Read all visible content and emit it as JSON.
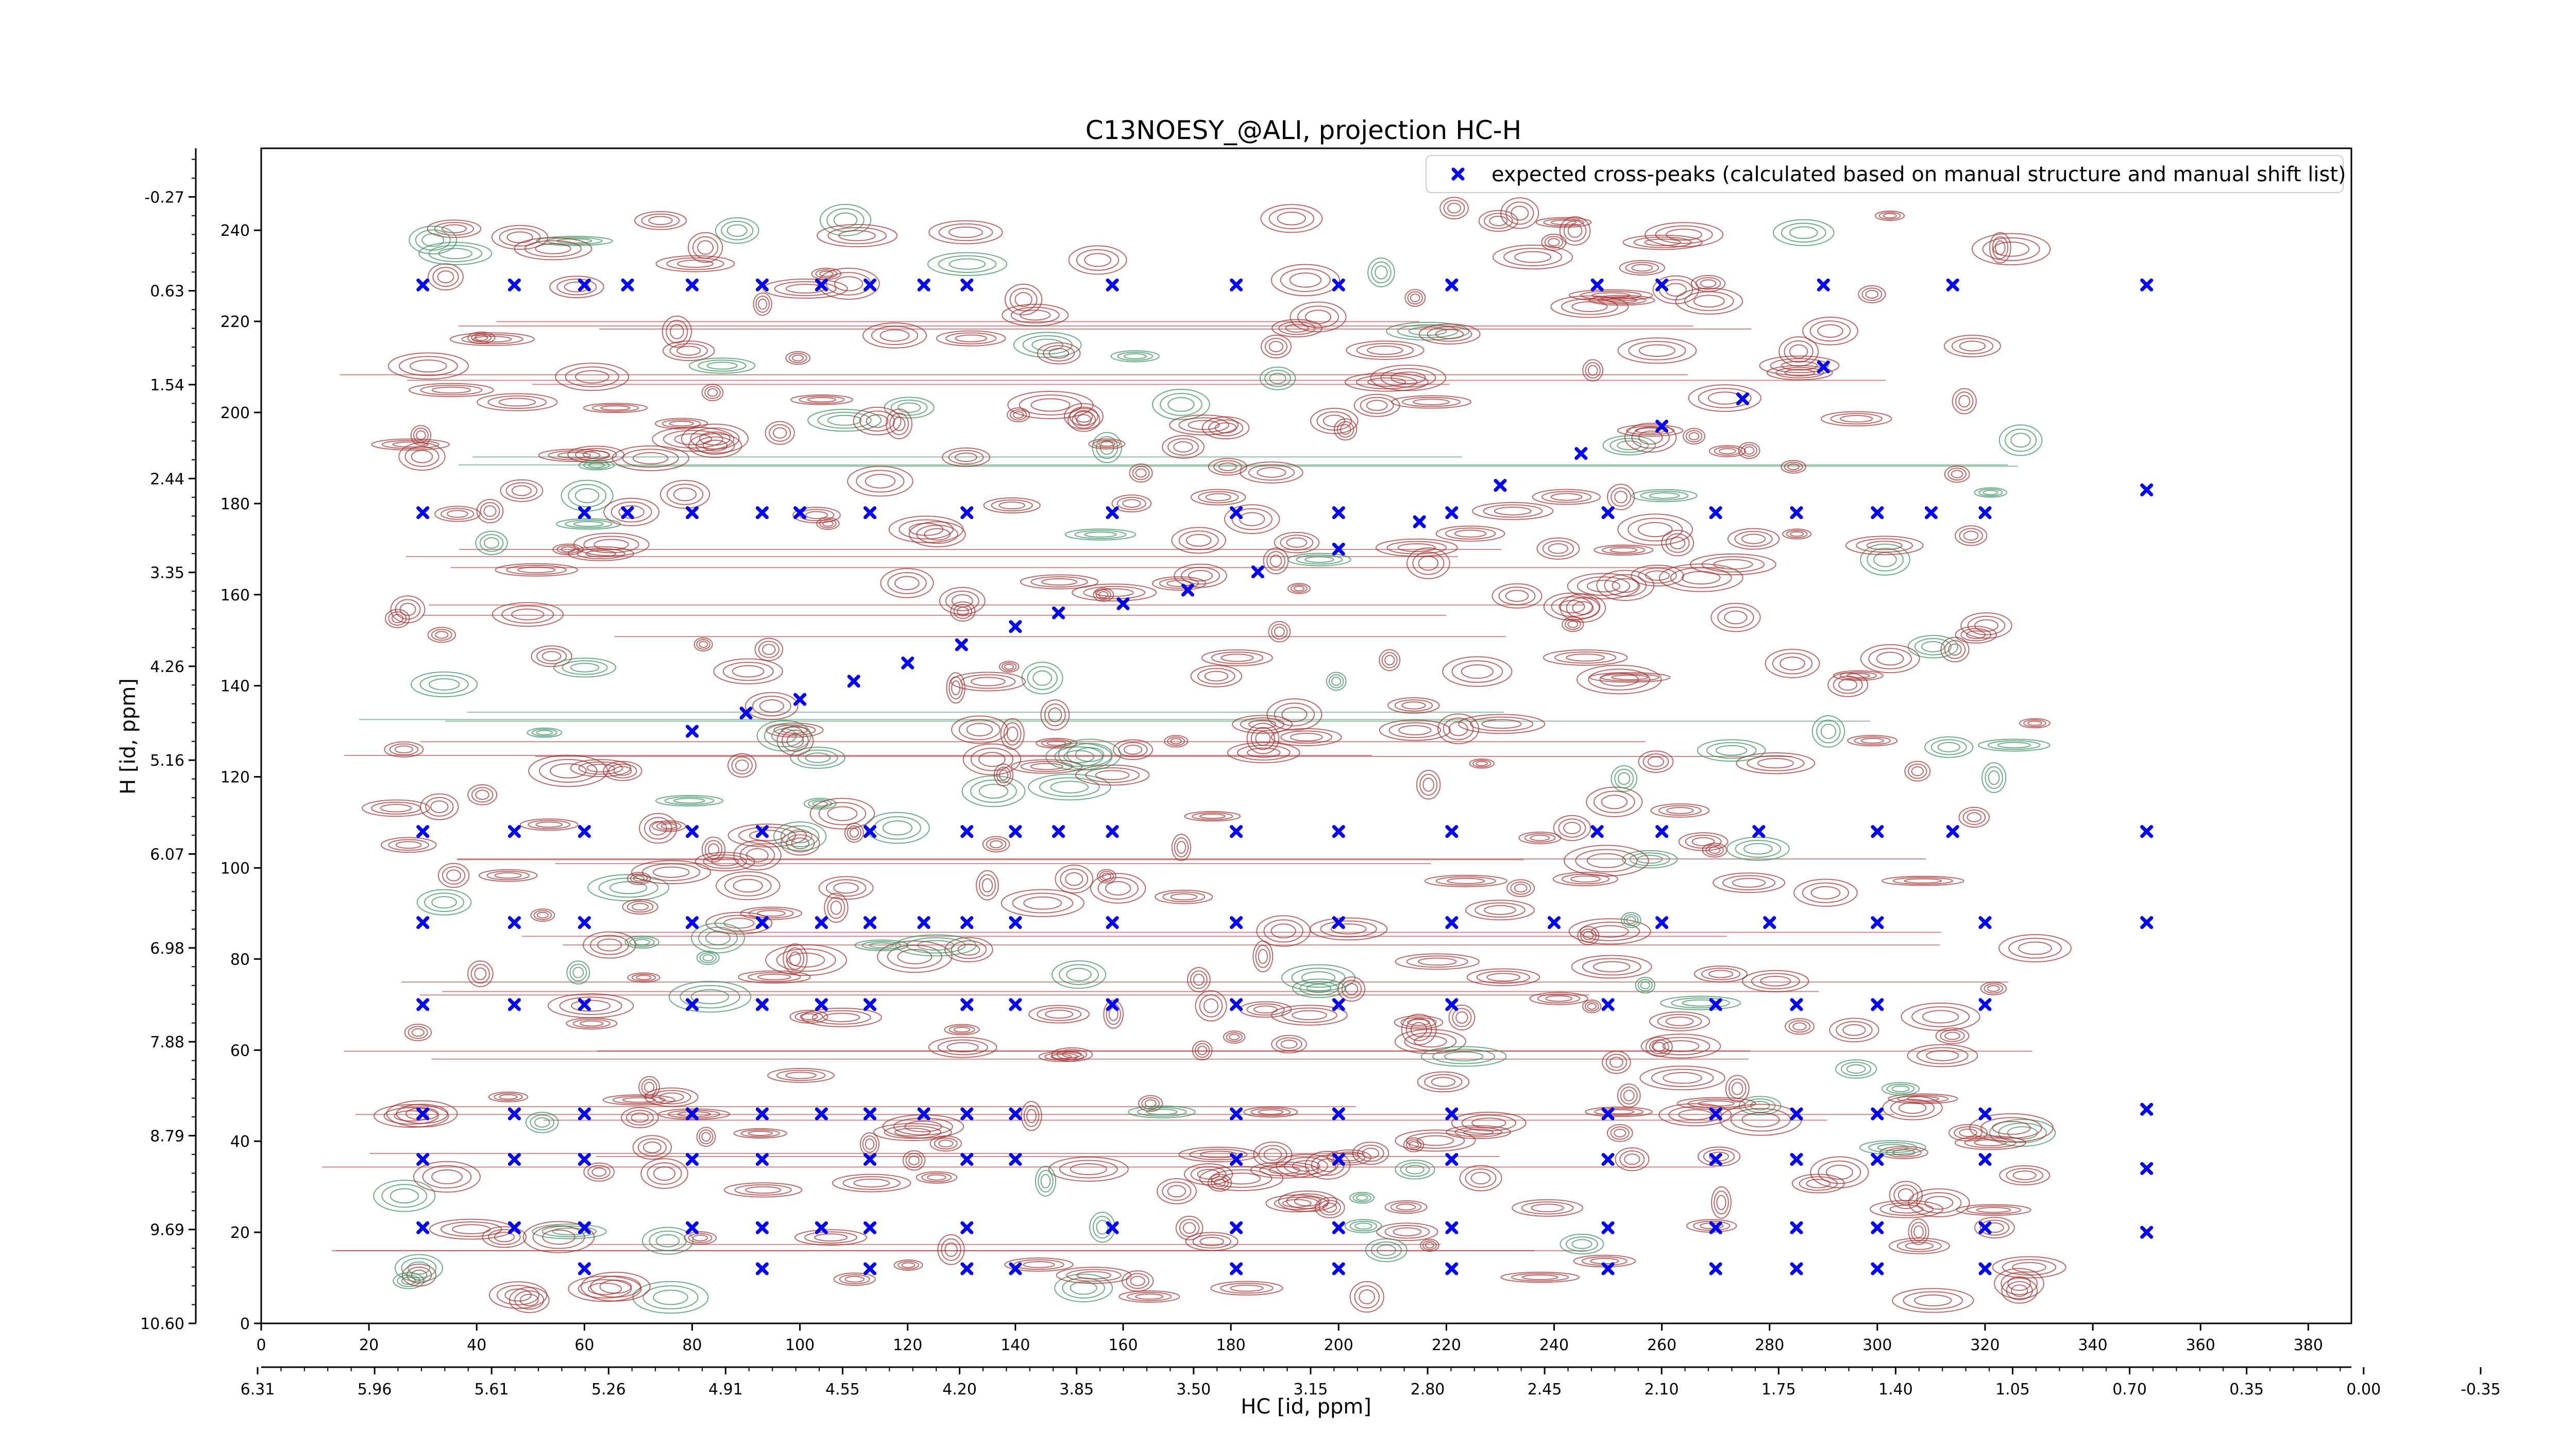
{
  "chart_data": {
    "type": "scatter",
    "title": "C13NOESY_@ALI, projection HC-H",
    "xlabel": "HC [id, ppm]",
    "ylabel": "H [id, ppm]",
    "xlim": [
      0,
      388
    ],
    "ylim": [
      0,
      258
    ],
    "x_ticks": [
      0,
      20,
      40,
      60,
      80,
      100,
      120,
      140,
      160,
      180,
      200,
      220,
      240,
      260,
      280,
      300,
      320,
      340,
      360,
      380
    ],
    "y_ticks": [
      0,
      20,
      40,
      60,
      80,
      100,
      120,
      140,
      160,
      180,
      200,
      220,
      240
    ],
    "x_ppm_ticks": [
      "6.31",
      "5.96",
      "5.61",
      "5.26",
      "4.91",
      "4.55",
      "4.20",
      "3.85",
      "3.50",
      "3.15",
      "2.80",
      "2.45",
      "2.10",
      "1.75",
      "1.40",
      "1.05",
      "0.70",
      "0.35",
      "0.00",
      "-0.35"
    ],
    "y_ppm_ticks": [
      "10.60",
      "9.69",
      "8.79",
      "7.88",
      "6.98",
      "6.07",
      "5.16",
      "4.26",
      "3.35",
      "2.44",
      "1.54",
      "0.63",
      "-0.27"
    ],
    "legend": {
      "placement": "top-right",
      "entries": [
        "expected cross-peaks (calculated based on manual structure and manual shift list)"
      ]
    },
    "grid": false,
    "series": [
      {
        "name": "expected cross-peaks (calculated based on manual structure and manual shift list)",
        "color": "#0000ff",
        "marker": "x",
        "points": [
          [
            30,
            228
          ],
          [
            47,
            228
          ],
          [
            60,
            228
          ],
          [
            68,
            228
          ],
          [
            80,
            228
          ],
          [
            93,
            228
          ],
          [
            104,
            228
          ],
          [
            113,
            228
          ],
          [
            123,
            228
          ],
          [
            131,
            228
          ],
          [
            158,
            228
          ],
          [
            181,
            228
          ],
          [
            200,
            228
          ],
          [
            221,
            228
          ],
          [
            248,
            228
          ],
          [
            260,
            228
          ],
          [
            290,
            228
          ],
          [
            314,
            228
          ],
          [
            350,
            228
          ],
          [
            30,
            178
          ],
          [
            60,
            178
          ],
          [
            68,
            178
          ],
          [
            80,
            178
          ],
          [
            93,
            178
          ],
          [
            100,
            178
          ],
          [
            113,
            178
          ],
          [
            131,
            178
          ],
          [
            158,
            178
          ],
          [
            181,
            178
          ],
          [
            200,
            178
          ],
          [
            221,
            178
          ],
          [
            250,
            178
          ],
          [
            270,
            178
          ],
          [
            285,
            178
          ],
          [
            300,
            178
          ],
          [
            310,
            178
          ],
          [
            320,
            178
          ],
          [
            350,
            183
          ],
          [
            30,
            108
          ],
          [
            47,
            108
          ],
          [
            60,
            108
          ],
          [
            80,
            108
          ],
          [
            93,
            108
          ],
          [
            113,
            108
          ],
          [
            131,
            108
          ],
          [
            140,
            108
          ],
          [
            148,
            108
          ],
          [
            158,
            108
          ],
          [
            181,
            108
          ],
          [
            200,
            108
          ],
          [
            221,
            108
          ],
          [
            248,
            108
          ],
          [
            260,
            108
          ],
          [
            278,
            108
          ],
          [
            300,
            108
          ],
          [
            314,
            108
          ],
          [
            350,
            108
          ],
          [
            30,
            88
          ],
          [
            47,
            88
          ],
          [
            60,
            88
          ],
          [
            80,
            88
          ],
          [
            93,
            88
          ],
          [
            104,
            88
          ],
          [
            113,
            88
          ],
          [
            123,
            88
          ],
          [
            131,
            88
          ],
          [
            140,
            88
          ],
          [
            158,
            88
          ],
          [
            181,
            88
          ],
          [
            200,
            88
          ],
          [
            221,
            88
          ],
          [
            240,
            88
          ],
          [
            260,
            88
          ],
          [
            280,
            88
          ],
          [
            300,
            88
          ],
          [
            320,
            88
          ],
          [
            350,
            88
          ],
          [
            30,
            70
          ],
          [
            47,
            70
          ],
          [
            60,
            70
          ],
          [
            80,
            70
          ],
          [
            93,
            70
          ],
          [
            104,
            70
          ],
          [
            113,
            70
          ],
          [
            131,
            70
          ],
          [
            140,
            70
          ],
          [
            158,
            70
          ],
          [
            181,
            70
          ],
          [
            200,
            70
          ],
          [
            221,
            70
          ],
          [
            250,
            70
          ],
          [
            270,
            70
          ],
          [
            285,
            70
          ],
          [
            300,
            70
          ],
          [
            320,
            70
          ],
          [
            30,
            46
          ],
          [
            47,
            46
          ],
          [
            60,
            46
          ],
          [
            80,
            46
          ],
          [
            93,
            46
          ],
          [
            104,
            46
          ],
          [
            113,
            46
          ],
          [
            123,
            46
          ],
          [
            131,
            46
          ],
          [
            140,
            46
          ],
          [
            181,
            46
          ],
          [
            200,
            46
          ],
          [
            221,
            46
          ],
          [
            250,
            46
          ],
          [
            270,
            46
          ],
          [
            285,
            46
          ],
          [
            300,
            46
          ],
          [
            320,
            46
          ],
          [
            350,
            47
          ],
          [
            30,
            36
          ],
          [
            47,
            36
          ],
          [
            60,
            36
          ],
          [
            80,
            36
          ],
          [
            93,
            36
          ],
          [
            113,
            36
          ],
          [
            131,
            36
          ],
          [
            140,
            36
          ],
          [
            181,
            36
          ],
          [
            200,
            36
          ],
          [
            221,
            36
          ],
          [
            250,
            36
          ],
          [
            270,
            36
          ],
          [
            285,
            36
          ],
          [
            300,
            36
          ],
          [
            320,
            36
          ],
          [
            350,
            34
          ],
          [
            30,
            21
          ],
          [
            47,
            21
          ],
          [
            60,
            21
          ],
          [
            80,
            21
          ],
          [
            93,
            21
          ],
          [
            104,
            21
          ],
          [
            113,
            21
          ],
          [
            131,
            21
          ],
          [
            158,
            21
          ],
          [
            181,
            21
          ],
          [
            200,
            21
          ],
          [
            221,
            21
          ],
          [
            250,
            21
          ],
          [
            270,
            21
          ],
          [
            285,
            21
          ],
          [
            300,
            21
          ],
          [
            320,
            21
          ],
          [
            350,
            20
          ],
          [
            60,
            12
          ],
          [
            93,
            12
          ],
          [
            113,
            12
          ],
          [
            131,
            12
          ],
          [
            140,
            12
          ],
          [
            181,
            12
          ],
          [
            200,
            12
          ],
          [
            221,
            12
          ],
          [
            250,
            12
          ],
          [
            270,
            12
          ],
          [
            285,
            12
          ],
          [
            300,
            12
          ],
          [
            320,
            12
          ],
          [
            80,
            130
          ],
          [
            90,
            134
          ],
          [
            100,
            137
          ],
          [
            110,
            141
          ],
          [
            120,
            145
          ],
          [
            130,
            149
          ],
          [
            140,
            153
          ],
          [
            148,
            156
          ],
          [
            160,
            158
          ],
          [
            172,
            161
          ],
          [
            185,
            165
          ],
          [
            200,
            170
          ],
          [
            215,
            176
          ],
          [
            230,
            184
          ],
          [
            245,
            191
          ],
          [
            260,
            197
          ],
          [
            275,
            203
          ],
          [
            290,
            210
          ]
        ]
      }
    ],
    "contours": {
      "positive_color": "#a52a2a",
      "negative_color": "#2e8b57"
    }
  }
}
